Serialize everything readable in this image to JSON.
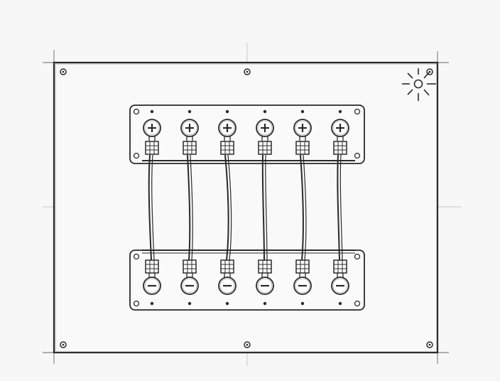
{
  "diagram": {
    "positive_symbol": "+",
    "negative_symbol": "−",
    "terminal_pairs": 6,
    "icons": [
      "screw-icon",
      "light-icon",
      "terminal-plus-icon",
      "terminal-minus-icon",
      "wire-icon"
    ],
    "colors": {
      "ink": "#2a2a2a",
      "paper": "#f7f7f7",
      "panel": "#f9f9f9",
      "guide": "#c9c9c9"
    }
  }
}
